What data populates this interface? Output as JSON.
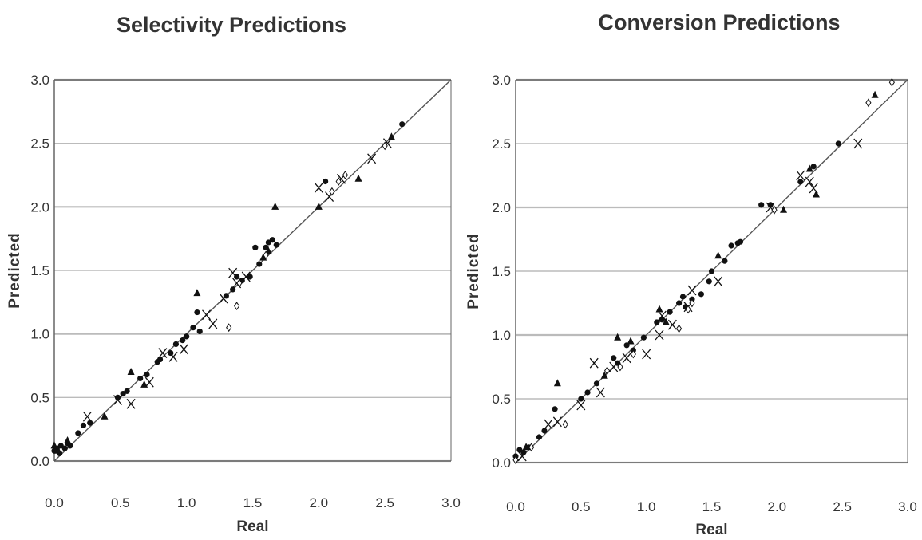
{
  "chart_data": [
    {
      "type": "scatter",
      "title": "Selectivity Predictions",
      "xlabel": "Real",
      "ylabel": "Predicted",
      "xlim": [
        0,
        3
      ],
      "ylim": [
        0,
        3
      ],
      "xticks": [
        "0.0",
        "0.5",
        "1.0",
        "1.5",
        "2.0",
        "2.5",
        "3.0"
      ],
      "yticks": [
        "0.0",
        "0.5",
        "1.0",
        "1.5",
        "2.0",
        "2.5",
        "3.0"
      ],
      "grid": "horizontal",
      "legend": "none",
      "reference_line": {
        "from": [
          0,
          0
        ],
        "to": [
          3,
          3
        ]
      },
      "colors": {
        "marker": "#111111",
        "line": "#555555",
        "grid": "#bbbbbb",
        "frame": "#666666"
      },
      "series": [
        {
          "marker": "circle",
          "x": [
            0.0,
            0.02,
            0.04,
            0.05,
            0.08,
            0.1,
            0.12,
            0.18,
            0.22,
            0.27,
            0.48,
            0.52,
            0.55,
            0.65,
            0.7,
            0.78,
            0.8,
            0.88,
            0.92,
            0.97,
            1.0,
            1.05,
            1.08,
            1.1,
            1.3,
            1.35,
            1.38,
            1.42,
            1.48,
            1.52,
            1.55,
            1.6,
            1.62,
            1.65,
            1.68,
            2.05,
            2.63
          ],
          "y": [
            0.08,
            0.1,
            0.06,
            0.12,
            0.1,
            0.14,
            0.12,
            0.22,
            0.28,
            0.3,
            0.5,
            0.53,
            0.55,
            0.65,
            0.68,
            0.78,
            0.8,
            0.85,
            0.92,
            0.95,
            0.98,
            1.05,
            1.17,
            1.02,
            1.3,
            1.35,
            1.45,
            1.42,
            1.45,
            1.68,
            1.55,
            1.68,
            1.72,
            1.74,
            1.7,
            2.2,
            2.65
          ]
        },
        {
          "marker": "triangle",
          "x": [
            0.0,
            0.03,
            0.1,
            0.38,
            0.58,
            0.68,
            1.08,
            1.58,
            1.62,
            1.67,
            2.0,
            2.3,
            2.55
          ],
          "y": [
            0.12,
            0.08,
            0.16,
            0.35,
            0.7,
            0.6,
            1.32,
            1.6,
            1.65,
            2.0,
            2.0,
            2.22,
            2.55
          ]
        },
        {
          "marker": "x",
          "x": [
            0.25,
            0.48,
            0.58,
            0.72,
            0.82,
            0.9,
            0.98,
            1.15,
            1.2,
            1.28,
            1.35,
            1.38,
            1.45,
            2.0,
            2.08,
            2.17,
            2.4,
            2.52
          ],
          "y": [
            0.35,
            0.48,
            0.45,
            0.62,
            0.85,
            0.82,
            0.88,
            1.15,
            1.08,
            1.28,
            1.48,
            1.4,
            1.45,
            2.15,
            2.08,
            2.22,
            2.38,
            2.5
          ]
        },
        {
          "marker": "diamond",
          "x": [
            1.32,
            1.38,
            1.4,
            1.6,
            2.1,
            2.15,
            2.2,
            2.5
          ],
          "y": [
            1.05,
            1.22,
            1.4,
            1.62,
            2.12,
            2.2,
            2.25,
            2.48
          ]
        }
      ]
    },
    {
      "type": "scatter",
      "title": "Conversion Predictions",
      "xlabel": "Real",
      "ylabel": "Predicted",
      "xlim": [
        0,
        3
      ],
      "ylim": [
        0,
        3
      ],
      "xticks": [
        "0.0",
        "0.5",
        "1.0",
        "1.5",
        "2.0",
        "2.5",
        "3.0"
      ],
      "yticks": [
        "0.0",
        "0.5",
        "1.0",
        "1.5",
        "2.0",
        "2.5",
        "3.0"
      ],
      "grid": "horizontal",
      "legend": "none",
      "reference_line": {
        "from": [
          0,
          0
        ],
        "to": [
          3,
          3
        ]
      },
      "colors": {
        "marker": "#111111",
        "line": "#555555",
        "grid": "#bbbbbb",
        "frame": "#666666"
      },
      "series": [
        {
          "marker": "circle",
          "x": [
            0.0,
            0.03,
            0.06,
            0.1,
            0.18,
            0.22,
            0.3,
            0.5,
            0.55,
            0.62,
            0.75,
            0.78,
            0.85,
            0.9,
            0.98,
            1.08,
            1.12,
            1.18,
            1.25,
            1.28,
            1.3,
            1.35,
            1.42,
            1.48,
            1.5,
            1.6,
            1.65,
            1.7,
            1.72,
            1.88,
            1.95,
            2.18,
            2.28,
            2.47
          ],
          "y": [
            0.05,
            0.1,
            0.08,
            0.12,
            0.2,
            0.25,
            0.42,
            0.5,
            0.55,
            0.62,
            0.82,
            0.78,
            0.92,
            0.88,
            0.98,
            1.1,
            1.12,
            1.18,
            1.25,
            1.3,
            1.22,
            1.28,
            1.32,
            1.42,
            1.5,
            1.58,
            1.7,
            1.72,
            1.73,
            2.02,
            2.02,
            2.2,
            2.32,
            2.5
          ]
        },
        {
          "marker": "triangle",
          "x": [
            0.08,
            0.32,
            0.68,
            0.78,
            0.88,
            1.1,
            1.15,
            1.55,
            2.05,
            2.25,
            2.3,
            2.75
          ],
          "y": [
            0.12,
            0.62,
            0.68,
            0.98,
            0.95,
            1.2,
            1.1,
            1.62,
            1.98,
            2.3,
            2.1,
            2.88
          ]
        },
        {
          "marker": "x",
          "x": [
            0.05,
            0.25,
            0.32,
            0.5,
            0.6,
            0.65,
            0.75,
            0.85,
            1.0,
            1.1,
            1.12,
            1.2,
            1.32,
            1.35,
            1.55,
            1.95,
            2.18,
            2.25,
            2.28,
            2.62
          ],
          "y": [
            0.05,
            0.3,
            0.32,
            0.45,
            0.78,
            0.55,
            0.75,
            0.82,
            0.85,
            1.0,
            1.15,
            1.08,
            1.22,
            1.35,
            1.42,
            2.0,
            2.25,
            2.2,
            2.15,
            2.5
          ]
        },
        {
          "marker": "diamond",
          "x": [
            0.0,
            0.12,
            0.38,
            0.7,
            0.8,
            0.9,
            1.25,
            1.32,
            1.35,
            1.98,
            2.7,
            2.88
          ],
          "y": [
            0.02,
            0.12,
            0.3,
            0.72,
            0.75,
            0.85,
            1.05,
            1.2,
            1.25,
            1.98,
            2.82,
            2.98
          ]
        }
      ]
    }
  ]
}
